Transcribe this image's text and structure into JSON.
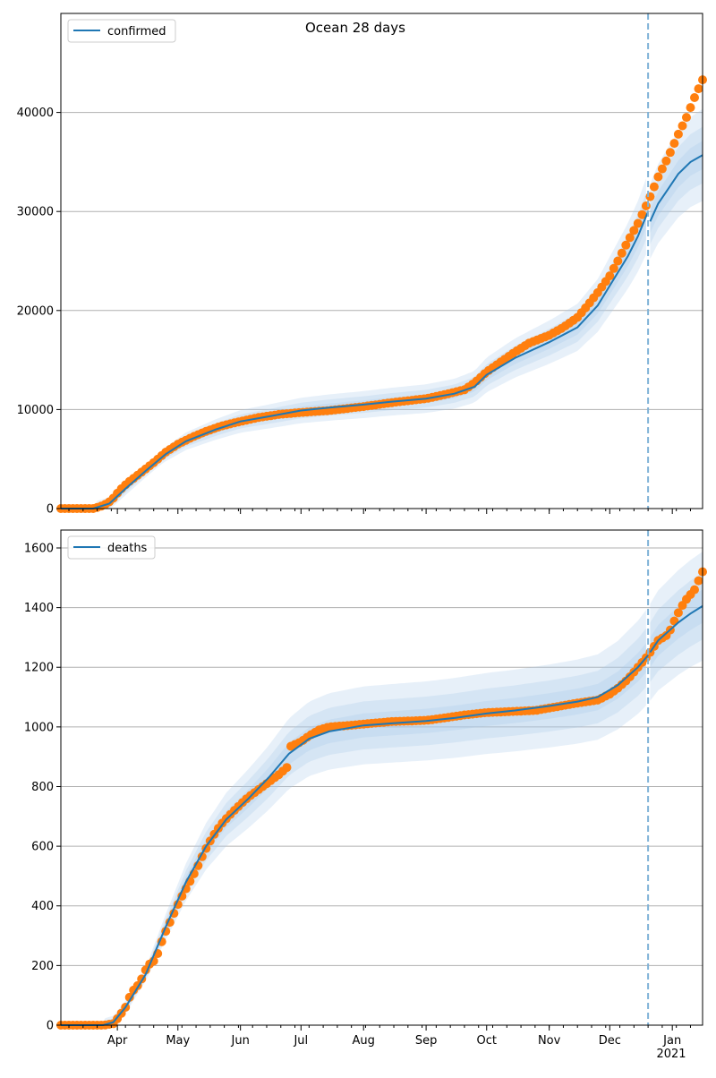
{
  "title": "Ocean 28 days",
  "colors": {
    "line": "#1f77b4",
    "band": "#a9c9e8",
    "points": "#ff7f0e",
    "grid": "#b0b0b0",
    "forecast_marker": "#7fb2d7"
  },
  "x_axis": {
    "months": [
      {
        "date": "2020-04-01",
        "label": "Apr"
      },
      {
        "date": "2020-05-01",
        "label": "May"
      },
      {
        "date": "2020-06-01",
        "label": "Jun"
      },
      {
        "date": "2020-07-01",
        "label": "Jul"
      },
      {
        "date": "2020-08-01",
        "label": "Aug"
      },
      {
        "date": "2020-09-01",
        "label": "Sep"
      },
      {
        "date": "2020-10-01",
        "label": "Oct"
      },
      {
        "date": "2020-11-01",
        "label": "Nov"
      },
      {
        "date": "2020-12-01",
        "label": "Dec"
      },
      {
        "date": "2021-01-01",
        "label": "Jan"
      }
    ],
    "year_label": "2021",
    "range": [
      "2020-03-04",
      "2021-01-16"
    ],
    "forecast_start": "2020-12-20"
  },
  "chart_data": [
    {
      "type": "line",
      "title": "Ocean 28 days",
      "legend": {
        "label": "confirmed",
        "placement": "top-left"
      },
      "ylim": [
        0,
        50000
      ],
      "yticks": [
        0,
        10000,
        20000,
        30000,
        40000
      ],
      "grid": "y",
      "fit_series": {
        "name": "confirmed",
        "x": [
          "2020-03-04",
          "2020-03-20",
          "2020-03-28",
          "2020-04-05",
          "2020-04-15",
          "2020-04-25",
          "2020-05-05",
          "2020-05-20",
          "2020-06-01",
          "2020-06-15",
          "2020-07-01",
          "2020-07-15",
          "2020-08-01",
          "2020-08-15",
          "2020-09-01",
          "2020-09-15",
          "2020-09-25",
          "2020-10-01",
          "2020-10-15",
          "2020-11-01",
          "2020-11-15",
          "2020-11-25",
          "2020-12-01",
          "2020-12-10",
          "2020-12-15",
          "2020-12-20"
        ],
        "y": [
          0,
          0,
          500,
          2000,
          3800,
          5500,
          6800,
          8000,
          8800,
          9300,
          9900,
          10200,
          10500,
          10800,
          11100,
          11600,
          12300,
          13500,
          15200,
          16800,
          18300,
          20500,
          22500,
          25500,
          27500,
          30000
        ],
        "forecast_x": [
          "2020-12-21",
          "2020-12-25",
          "2020-12-30",
          "2021-01-04",
          "2021-01-10",
          "2021-01-16"
        ],
        "forecast_y": [
          29000,
          30800,
          32300,
          33800,
          35000,
          35700
        ]
      },
      "observed": {
        "x": [
          "2020-03-04",
          "2020-03-12",
          "2020-03-20",
          "2020-03-25",
          "2020-03-29",
          "2020-04-02",
          "2020-04-06",
          "2020-04-10",
          "2020-04-15",
          "2020-04-20",
          "2020-04-25",
          "2020-05-01",
          "2020-05-08",
          "2020-05-15",
          "2020-05-22",
          "2020-06-01",
          "2020-06-10",
          "2020-06-20",
          "2020-07-01",
          "2020-07-15",
          "2020-08-01",
          "2020-08-15",
          "2020-09-01",
          "2020-09-10",
          "2020-09-20",
          "2020-09-25",
          "2020-10-01",
          "2020-10-08",
          "2020-10-15",
          "2020-10-22",
          "2020-11-01",
          "2020-11-08",
          "2020-11-15",
          "2020-11-20",
          "2020-11-25",
          "2020-12-01",
          "2020-12-05",
          "2020-12-10",
          "2020-12-15",
          "2020-12-20",
          "2020-12-25",
          "2020-12-30",
          "2021-01-04",
          "2021-01-08",
          "2021-01-12",
          "2021-01-16"
        ],
        "y": [
          0,
          0,
          0,
          300,
          800,
          1800,
          2600,
          3200,
          4000,
          4800,
          5700,
          6500,
          7200,
          7800,
          8300,
          8800,
          9200,
          9500,
          9700,
          9900,
          10300,
          10700,
          11100,
          11500,
          12000,
          12700,
          13800,
          14800,
          15800,
          16700,
          17500,
          18300,
          19300,
          20500,
          21800,
          23500,
          25000,
          27000,
          28800,
          31000,
          33500,
          35500,
          37800,
          39500,
          41500,
          43300
        ]
      },
      "band_half_widths_relative": [
        0.04,
        0.08,
        0.13
      ]
    },
    {
      "type": "line",
      "legend": {
        "label": "deaths",
        "placement": "top-left"
      },
      "ylim": [
        0,
        1660
      ],
      "yticks": [
        0,
        200,
        400,
        600,
        800,
        1000,
        1200,
        1400,
        1600
      ],
      "grid": "y",
      "fit_series": {
        "name": "deaths",
        "x": [
          "2020-03-04",
          "2020-03-25",
          "2020-03-30",
          "2020-04-05",
          "2020-04-15",
          "2020-04-25",
          "2020-05-05",
          "2020-05-15",
          "2020-05-25",
          "2020-06-05",
          "2020-06-15",
          "2020-06-25",
          "2020-07-05",
          "2020-07-15",
          "2020-08-01",
          "2020-08-15",
          "2020-09-01",
          "2020-09-15",
          "2020-10-01",
          "2020-10-15",
          "2020-11-01",
          "2020-11-15",
          "2020-11-25",
          "2020-12-05",
          "2020-12-15",
          "2020-12-20"
        ],
        "y": [
          0,
          0,
          10,
          60,
          170,
          330,
          480,
          600,
          690,
          760,
          830,
          910,
          960,
          985,
          1005,
          1012,
          1020,
          1030,
          1045,
          1055,
          1070,
          1085,
          1100,
          1140,
          1200,
          1240
        ],
        "forecast_x": [
          "2020-12-21",
          "2020-12-25",
          "2020-12-30",
          "2021-01-04",
          "2021-01-10",
          "2021-01-16"
        ],
        "forecast_y": [
          1250,
          1290,
          1320,
          1350,
          1380,
          1405
        ]
      },
      "observed": {
        "x": [
          "2020-03-04",
          "2020-03-15",
          "2020-03-25",
          "2020-03-30",
          "2020-04-02",
          "2020-04-05",
          "2020-04-08",
          "2020-04-12",
          "2020-04-16",
          "2020-04-20",
          "2020-04-24",
          "2020-04-28",
          "2020-05-02",
          "2020-05-06",
          "2020-05-10",
          "2020-05-14",
          "2020-05-18",
          "2020-05-22",
          "2020-05-26",
          "2020-06-01",
          "2020-06-05",
          "2020-06-10",
          "2020-06-15",
          "2020-06-20",
          "2020-06-25",
          "2020-06-26",
          "2020-07-01",
          "2020-07-05",
          "2020-07-10",
          "2020-07-15",
          "2020-07-25",
          "2020-08-05",
          "2020-08-15",
          "2020-08-25",
          "2020-09-01",
          "2020-09-10",
          "2020-09-20",
          "2020-10-01",
          "2020-10-15",
          "2020-10-25",
          "2020-11-05",
          "2020-11-15",
          "2020-11-25",
          "2020-12-01",
          "2020-12-05",
          "2020-12-10",
          "2020-12-15",
          "2020-12-20",
          "2020-12-25",
          "2020-12-30",
          "2021-01-03",
          "2021-01-07",
          "2021-01-12",
          "2021-01-16"
        ],
        "y": [
          0,
          0,
          0,
          5,
          30,
          60,
          110,
          140,
          200,
          220,
          300,
          360,
          420,
          470,
          520,
          580,
          630,
          670,
          700,
          740,
          765,
          790,
          815,
          840,
          870,
          935,
          950,
          970,
          990,
          1000,
          1005,
          1012,
          1018,
          1020,
          1022,
          1030,
          1040,
          1048,
          1052,
          1055,
          1068,
          1080,
          1090,
          1110,
          1130,
          1160,
          1200,
          1240,
          1290,
          1310,
          1370,
          1420,
          1460,
          1520
        ]
      },
      "band_half_widths_relative": [
        0.04,
        0.08,
        0.13
      ]
    }
  ]
}
